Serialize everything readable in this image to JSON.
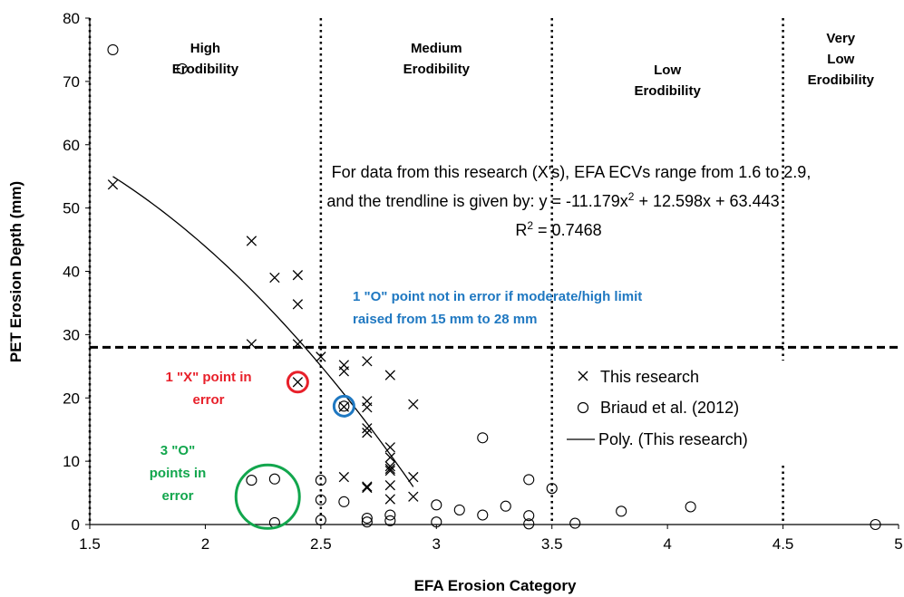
{
  "chart_data": {
    "type": "scatter",
    "xlabel": "EFA Erosion Category",
    "ylabel": "PET Erosion Depth (mm)",
    "xlim": [
      1.5,
      5
    ],
    "ylim": [
      0,
      80
    ],
    "x_ticks": [
      "1.5",
      "2",
      "2.5",
      "3",
      "3.5",
      "4",
      "4.5",
      "5"
    ],
    "y_ticks": [
      "0",
      "10",
      "20",
      "30",
      "40",
      "50",
      "60",
      "70",
      "80"
    ],
    "grid": false,
    "legend_position": "right-center",
    "category_boundaries": [
      1.5,
      2.5,
      3.5,
      4.5
    ],
    "threshold_y": 28,
    "regions": [
      {
        "x_center": 2.0,
        "lines": [
          "High",
          "Erodibility"
        ]
      },
      {
        "x_center": 3.0,
        "lines": [
          "Medium",
          "Erodibility"
        ]
      },
      {
        "x_center": 4.0,
        "lines": [
          "Low",
          "Erodibility"
        ]
      },
      {
        "x_center": 4.75,
        "lines": [
          "Very",
          "Low",
          "Erodibility"
        ]
      }
    ],
    "series": [
      {
        "name": "This research",
        "marker": "x",
        "points": [
          [
            1.6,
            53.7
          ],
          [
            2.2,
            44.8
          ],
          [
            2.2,
            28.5
          ],
          [
            2.3,
            39.0
          ],
          [
            2.4,
            39.4
          ],
          [
            2.4,
            34.8
          ],
          [
            2.4,
            28.5
          ],
          [
            2.4,
            22.5
          ],
          [
            2.5,
            26.5
          ],
          [
            2.6,
            25.2
          ],
          [
            2.6,
            24.2
          ],
          [
            2.6,
            18.6
          ],
          [
            2.6,
            7.5
          ],
          [
            2.7,
            25.8
          ],
          [
            2.7,
            19.5
          ],
          [
            2.7,
            18.5
          ],
          [
            2.7,
            15.2
          ],
          [
            2.7,
            14.5
          ],
          [
            2.7,
            6.0
          ],
          [
            2.7,
            5.8
          ],
          [
            2.8,
            23.6
          ],
          [
            2.8,
            12.2
          ],
          [
            2.8,
            10.6
          ],
          [
            2.8,
            9.2
          ],
          [
            2.8,
            8.8
          ],
          [
            2.8,
            8.5
          ],
          [
            2.8,
            6.2
          ],
          [
            2.8,
            4.0
          ],
          [
            2.9,
            19.0
          ],
          [
            2.9,
            7.5
          ],
          [
            2.9,
            4.4
          ]
        ]
      },
      {
        "name": "Briaud et al. (2012)",
        "marker": "o",
        "points": [
          [
            1.6,
            75.0
          ],
          [
            1.9,
            72.0
          ],
          [
            2.2,
            7.0
          ],
          [
            2.3,
            7.2
          ],
          [
            2.3,
            0.3
          ],
          [
            2.5,
            7.0
          ],
          [
            2.5,
            3.9
          ],
          [
            2.5,
            0.7
          ],
          [
            2.6,
            18.7
          ],
          [
            2.6,
            3.6
          ],
          [
            2.7,
            1.0
          ],
          [
            2.7,
            0.4
          ],
          [
            2.8,
            1.5
          ],
          [
            2.8,
            0.6
          ],
          [
            3.0,
            3.1
          ],
          [
            3.0,
            0.4
          ],
          [
            3.1,
            2.3
          ],
          [
            3.2,
            13.7
          ],
          [
            3.2,
            1.5
          ],
          [
            3.3,
            2.9
          ],
          [
            3.4,
            7.1
          ],
          [
            3.4,
            1.4
          ],
          [
            3.4,
            0.1
          ],
          [
            3.5,
            5.7
          ],
          [
            3.6,
            0.2
          ],
          [
            3.8,
            2.1
          ],
          [
            4.1,
            2.8
          ],
          [
            4.9,
            0.0
          ]
        ]
      },
      {
        "name": "Poly. (This research)",
        "type": "line",
        "equation": "y = -11.179x² + 12.598x + 63.443",
        "coefficients": [
          -11.179,
          12.598,
          63.443
        ],
        "x_range": [
          1.6,
          2.9
        ]
      }
    ],
    "trendline_text": {
      "line1": "For data from this research (X's), EFA ECVs range from 1.6 to 2.9,",
      "line2_prefix": "and the trendline is given by:   y = -11.179x",
      "line2_sup": "2",
      "line2_suffix": " + 12.598x + 63.443",
      "line3_prefix": "R",
      "line3_sup": "2",
      "line3_suffix": " = 0.7468"
    },
    "annotations": [
      {
        "text_lines": [
          "1 \"O\" point not in error if moderate/high limit",
          "raised from 15 mm to 28 mm"
        ],
        "color": "#1f78c1"
      },
      {
        "text_lines": [
          "1 \"X\" point in",
          "error"
        ],
        "color": "#e8202a"
      },
      {
        "text_lines": [
          "3 \"O\"",
          "points in",
          "error"
        ],
        "color": "#12a64d"
      }
    ],
    "highlight_circles": [
      {
        "cx": 2.4,
        "cy": 22.5,
        "color": "#e8202a"
      },
      {
        "cx": 2.6,
        "cy": 18.7,
        "color": "#1f78c1"
      },
      {
        "cx": 2.27,
        "cy": 4.4,
        "color": "#12a64d"
      }
    ]
  }
}
